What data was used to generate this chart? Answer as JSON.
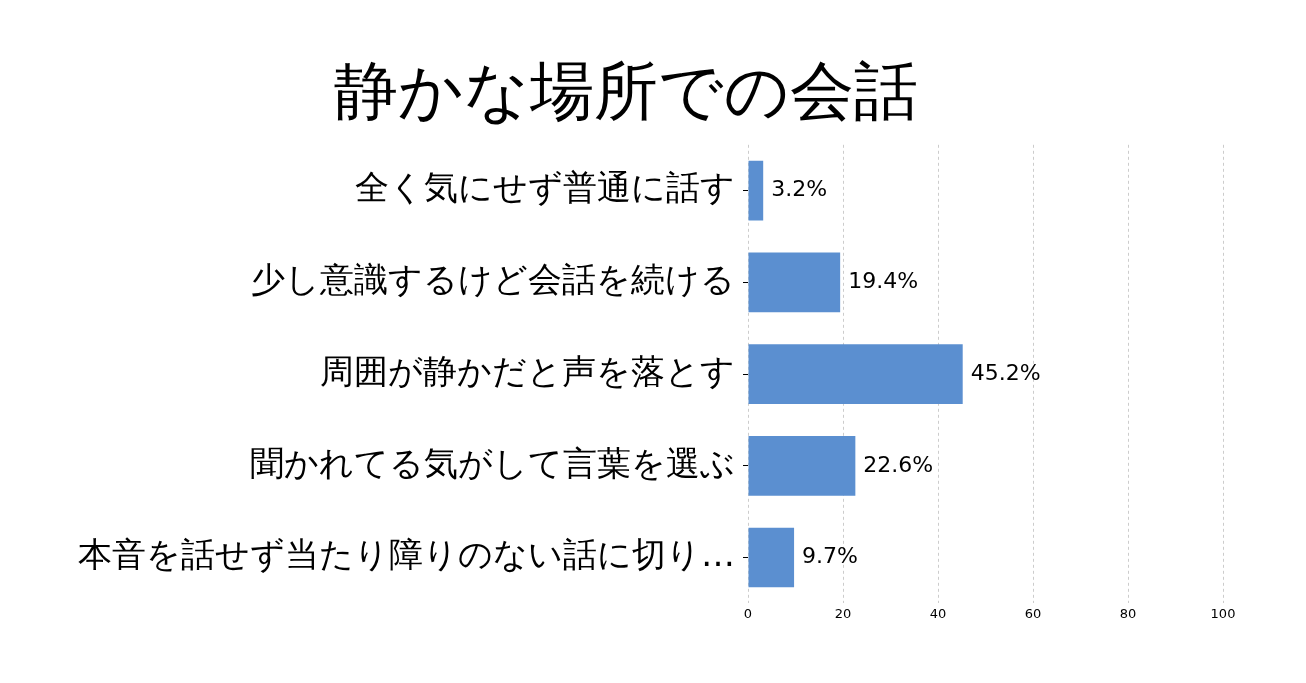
{
  "chart_data": {
    "type": "bar",
    "orientation": "horizontal",
    "title": "静かな場所での会話",
    "categories": [
      "全く気にせず普通に話す",
      "少し意識するけど会話を続ける",
      "周囲が静かだと声を落とす",
      "聞かれてる気がして言葉を選ぶ",
      "本音を話せず当たり障りのない話に切り…"
    ],
    "values": [
      3.2,
      19.4,
      45.2,
      22.6,
      9.7
    ],
    "value_labels": [
      "3.2%",
      "19.4%",
      "45.2%",
      "22.6%",
      "9.7%"
    ],
    "color": "#5b8fd0",
    "xlim": [
      0,
      100
    ],
    "xticks": [
      0,
      20,
      40,
      60,
      80,
      100
    ],
    "grid": "x",
    "legend": false
  }
}
